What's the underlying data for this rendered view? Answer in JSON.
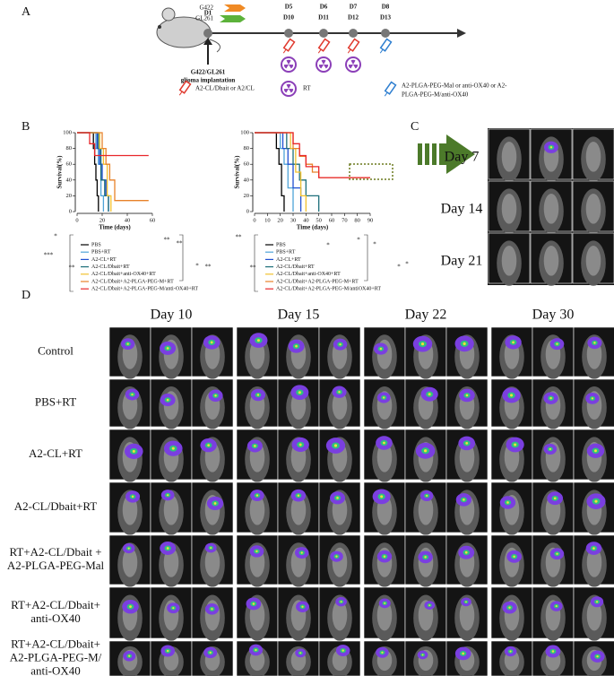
{
  "panels": {
    "a": "A",
    "b": "B",
    "c": "C",
    "d": "D"
  },
  "timeline": {
    "start": "D1",
    "model_a": "G422",
    "model_b": "GL261",
    "days_a": [
      "D5",
      "D6",
      "D7",
      "D8"
    ],
    "days_b": [
      "D10",
      "D11",
      "D12",
      "D13"
    ],
    "implant_lines": [
      "G422/GL261",
      "glioma implantation"
    ],
    "legend_syringe_red": "A2-CL/Dbait or A2/CL",
    "legend_rt": "RT",
    "legend_syringe_blue_lines": [
      "A2-PLGA-PEG-Mal or anti-OX40 or A2-",
      "PLGA-PEG-M/anti-OX40"
    ]
  },
  "survival": [
    {
      "type": "line",
      "ylabel": "Survival(%)",
      "xlabel": "Time (days)",
      "xlim": [
        0,
        60
      ],
      "xticks": [
        0,
        20,
        40,
        60
      ],
      "ylim": [
        0,
        100
      ],
      "yticks": [
        0,
        20,
        40,
        60,
        80,
        100
      ],
      "series": [
        {
          "name": "PBS",
          "color": "#000000",
          "x": [
            0,
            13,
            14,
            15,
            16,
            17
          ],
          "values": [
            100,
            80,
            60,
            40,
            20,
            0
          ]
        },
        {
          "name": "PBS+RT",
          "color": "#4fa3d8",
          "x": [
            0,
            15,
            17,
            19,
            21
          ],
          "values": [
            100,
            80,
            60,
            20,
            0
          ]
        },
        {
          "name": "A2-CL+RT",
          "color": "#1f4fd1",
          "x": [
            0,
            16,
            18,
            20,
            23,
            25
          ],
          "values": [
            100,
            80,
            60,
            40,
            20,
            0
          ]
        },
        {
          "name": "A2-CL/Dbait+RT",
          "color": "#1d6f7a",
          "x": [
            0,
            17,
            19,
            22,
            25
          ],
          "values": [
            100,
            80,
            40,
            20,
            0
          ]
        },
        {
          "name": "A2-CL/Dbait+anti-OX40+RT",
          "color": "#f2c12e",
          "x": [
            0,
            18,
            21,
            24,
            27
          ],
          "values": [
            100,
            80,
            60,
            20,
            0
          ]
        },
        {
          "name": "A2-CL/Dbait+A2-PLGA-PEG-M+RT",
          "color": "#e8822a",
          "x": [
            0,
            20,
            23,
            26,
            30,
            57
          ],
          "values": [
            100,
            80,
            60,
            40,
            14,
            14
          ]
        },
        {
          "name": "A2-CL/Dbait+A2-PLGA-PEG-M/anti-OX40+RT",
          "color": "#e8262a",
          "x": [
            0,
            10,
            14,
            57
          ],
          "values": [
            100,
            86,
            71,
            71
          ]
        }
      ],
      "significance": [
        "*",
        "***",
        "**",
        "**",
        "**",
        "*",
        "**"
      ]
    },
    {
      "type": "line",
      "ylabel": "Survival(%)",
      "xlabel": "Time (days)",
      "xlim": [
        0,
        90
      ],
      "xticks": [
        0,
        10,
        20,
        30,
        40,
        50,
        60,
        70,
        80,
        90
      ],
      "ylim": [
        0,
        100
      ],
      "yticks": [
        0,
        20,
        40,
        60,
        80,
        100
      ],
      "series": [
        {
          "name": "PBS",
          "color": "#000000",
          "x": [
            0,
            17,
            19,
            21,
            23
          ],
          "values": [
            100,
            80,
            60,
            20,
            0
          ]
        },
        {
          "name": "PBS+RT",
          "color": "#4fa3d8",
          "x": [
            0,
            20,
            23,
            26,
            30
          ],
          "values": [
            100,
            80,
            60,
            30,
            0
          ]
        },
        {
          "name": "A2-CL+RT",
          "color": "#1f4fd1",
          "x": [
            0,
            22,
            26,
            30,
            36
          ],
          "values": [
            100,
            80,
            60,
            30,
            0
          ]
        },
        {
          "name": "A2-CL/Dbait+RT",
          "color": "#1d6f7a",
          "x": [
            0,
            25,
            30,
            35,
            40,
            50
          ],
          "values": [
            100,
            80,
            60,
            40,
            20,
            0
          ]
        },
        {
          "name": "A2-CL/Dbait+anti-OX40+RT",
          "color": "#f2c12e",
          "x": [
            0,
            28,
            32,
            36,
            40
          ],
          "values": [
            100,
            80,
            50,
            20,
            0
          ]
        },
        {
          "name": "A2-CL/Dbait+A2-PLGA-PEG-M+RT",
          "color": "#e8822a",
          "x": [
            0,
            30,
            35,
            40,
            45,
            50,
            90
          ],
          "values": [
            100,
            80,
            70,
            60,
            50,
            43,
            43
          ]
        },
        {
          "name": "A2-CL/Dbait+A2-PLGA-PEG-M/antiOX40+RT",
          "color": "#e8262a",
          "x": [
            0,
            30,
            35,
            40,
            50,
            90
          ],
          "values": [
            100,
            86,
            71,
            57,
            43,
            43
          ]
        }
      ],
      "significance": [
        "**",
        "**",
        "*",
        "*",
        "*",
        "*",
        "*"
      ]
    }
  ],
  "imaging_c": {
    "days": [
      "Day 7",
      "Day 14",
      "Day 21"
    ]
  },
  "imaging_d": {
    "days": [
      "Day 10",
      "Day 15",
      "Day 22",
      "Day 30"
    ],
    "rows": [
      [
        "Control"
      ],
      [
        "PBS+RT"
      ],
      [
        "A2-CL+RT"
      ],
      [
        "A2-CL/Dbait+RT"
      ],
      [
        "RT+A2-CL/Dbait +",
        "A2-PLGA-PEG-Mal"
      ],
      [
        "RT+A2-CL/Dbait+",
        "anti-OX40"
      ],
      [
        "RT+A2-CL/Dbait+",
        "A2-PLGA-PEG-M/",
        "anti-OX40"
      ]
    ]
  }
}
